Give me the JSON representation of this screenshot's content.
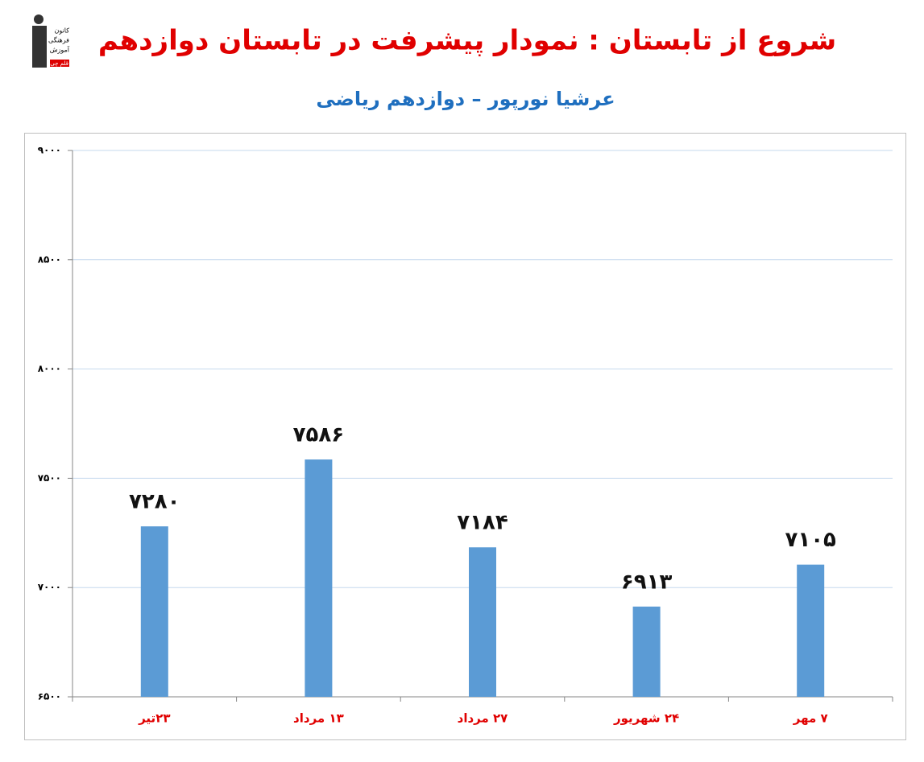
{
  "logo": [
    "کانون",
    "فرهنگی",
    "آموزش",
    "قلم چی"
  ],
  "chart_data": {
    "type": "bar",
    "title": "شروع از تابستان : نمودار پیشرفت در تابستان دوازدهم",
    "subtitle": "عرشیا نورپور – دوازدهم ریاضی",
    "categories": [
      "۲۳تیر",
      "۱۳ مرداد",
      "۲۷ مرداد",
      "۲۴ شهریور",
      "۷ مهر"
    ],
    "values": [
      7280,
      7586,
      7184,
      6913,
      7105
    ],
    "value_labels": [
      "۷۲۸۰",
      "۷۵۸۶",
      "۷۱۸۴",
      "۶۹۱۳",
      "۷۱۰۵"
    ],
    "color": "#5b9bd5",
    "ylim": [
      6500,
      9000
    ],
    "yticks": [
      {
        "value": 6500,
        "label": "۶۵۰۰"
      },
      {
        "value": 7000,
        "label": "۷۰۰۰"
      },
      {
        "value": 7500,
        "label": "۷۵۰۰"
      },
      {
        "value": 8000,
        "label": "۸۰۰۰"
      },
      {
        "value": 8500,
        "label": "۸۵۰۰"
      },
      {
        "value": 9000,
        "label": "۹۰۰۰"
      }
    ],
    "grid": true
  }
}
